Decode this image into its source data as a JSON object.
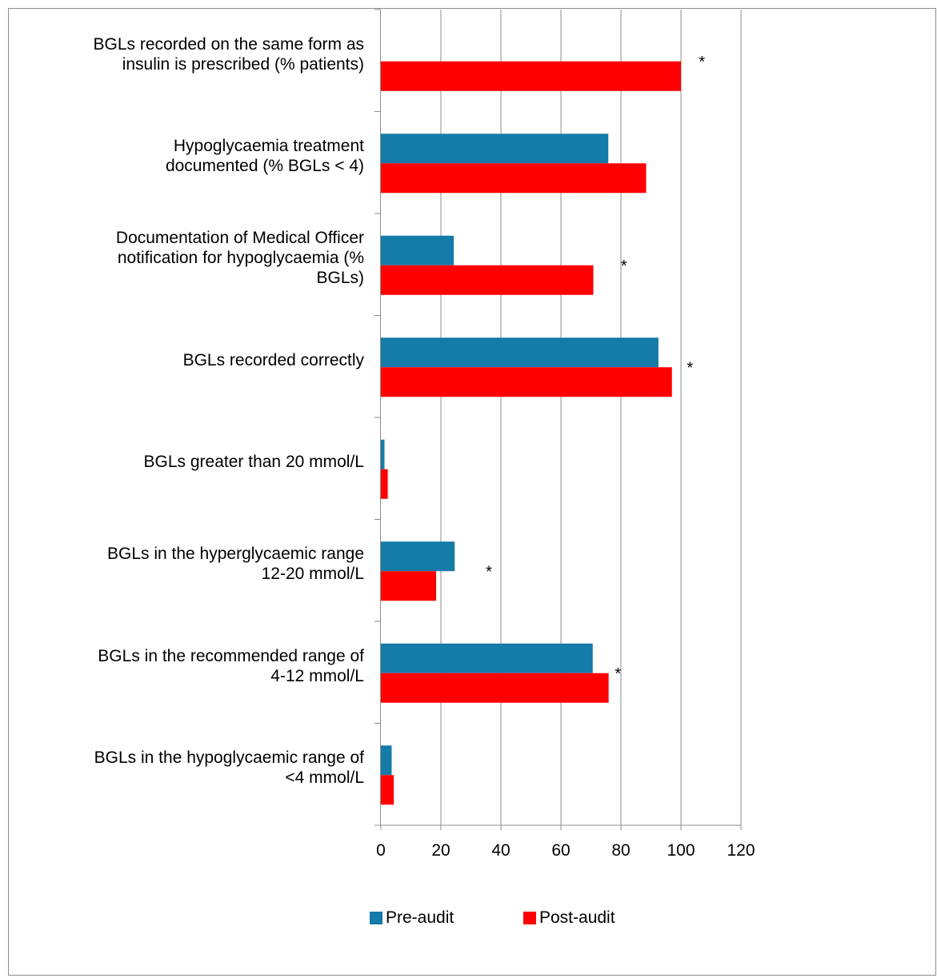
{
  "chart_data": {
    "type": "bar",
    "orientation": "horizontal",
    "categories": [
      [
        "BGLs recorded on the same form as",
        "insulin is prescribed (% patients)"
      ],
      [
        "Hypoglycaemia treatment",
        "documented (% BGLs < 4)"
      ],
      [
        "Documentation of Medical Officer",
        "notification for hypoglycaemia (%",
        "BGLs)"
      ],
      [
        "BGLs recorded correctly"
      ],
      [
        "BGLs greater than 20 mmol/L"
      ],
      [
        "BGLs in the hyperglycaemic range",
        "12-20 mmol/L"
      ],
      [
        "BGLs in the recommended range of",
        "4-12 mmol/L"
      ],
      [
        "BGLs in the hypoglycaemic range of",
        "<4 mmol/L"
      ]
    ],
    "series": [
      {
        "name": "Pre-audit",
        "color": "#157BA8",
        "values": [
          null,
          75.8,
          24.3,
          92.5,
          1.2,
          24.6,
          70.6,
          3.6
        ]
      },
      {
        "name": "Post-audit",
        "color": "#FF0000",
        "values": [
          100,
          88.4,
          70.8,
          97,
          2.3,
          18.4,
          75.9,
          4.3
        ]
      }
    ],
    "annotations": [
      {
        "category_index": 0,
        "text": "*",
        "x": 107
      },
      {
        "category_index": 2,
        "text": "*",
        "x": 81
      },
      {
        "category_index": 3,
        "text": "*",
        "x": 103
      },
      {
        "category_index": 5,
        "text": "*",
        "x": 36
      },
      {
        "category_index": 6,
        "text": "*",
        "x": 79
      }
    ],
    "xticks": [
      "0",
      "20",
      "40",
      "60",
      "80",
      "100",
      "120"
    ],
    "xlim": [
      0,
      120
    ],
    "grid": "vertical",
    "legend_position": "bottom"
  }
}
